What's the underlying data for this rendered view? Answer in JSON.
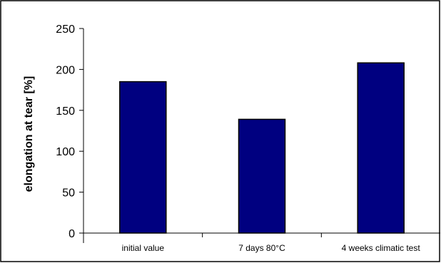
{
  "chart_data": {
    "type": "bar",
    "categories": [
      "initial value",
      "7 days 80°C",
      "4 weeks climatic test"
    ],
    "values": [
      185,
      139,
      208
    ],
    "title": "",
    "xlabel": "",
    "ylabel": "elongation at tear [%]",
    "ylim": [
      0,
      250
    ],
    "yticks": [
      "0",
      "50",
      "100",
      "150",
      "200",
      "250"
    ],
    "grid": false,
    "legend": "none",
    "bar_color": "#000080",
    "bar_edge_color": "#000000",
    "frame_color": "#000000"
  }
}
